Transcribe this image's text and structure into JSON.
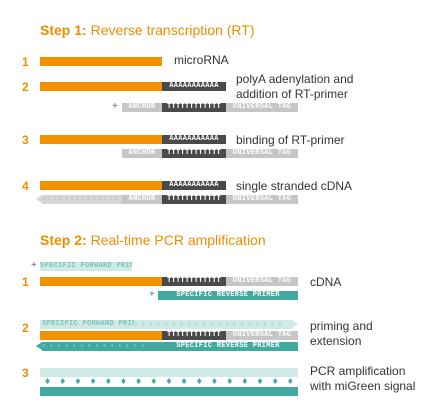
{
  "step1": {
    "prefix": "Step 1:",
    "label": "Reverse transcription (RT)",
    "rows": [
      {
        "num": "1",
        "desc": "microRNA"
      },
      {
        "num": "2",
        "desc": "polyA adenylation and\naddition of RT-primer"
      },
      {
        "num": "3",
        "desc": "binding of RT-primer"
      },
      {
        "num": "4",
        "desc": "single stranded cDNA"
      }
    ]
  },
  "step2": {
    "prefix": "Step 2:",
    "label": "Real-time PCR amplification",
    "rows": [
      {
        "num": "1",
        "desc": "cDNA"
      },
      {
        "num": "2",
        "desc": "priming and\nextension"
      },
      {
        "num": "3",
        "desc": "PCR amplification\nwith miGreen signal"
      }
    ]
  },
  "seq": {
    "polyA": "AAAAAAAAAAA",
    "polyT": "TTTTTTTTTTTT",
    "anchor": "ANCHOR",
    "universal_tag": "UNIVERSAL TAG",
    "fwd_primer": "SPECIFIC FORWARD PRIMER",
    "rev_primer": "SPECIFIC REVERSE PRIMER",
    "plus": "+"
  },
  "colors": {
    "orange": "#f39200",
    "dark": "#4a4a4a",
    "grey": "#c6c6c6",
    "teal": "#41a99f",
    "light_teal": "#cfe9e6"
  }
}
